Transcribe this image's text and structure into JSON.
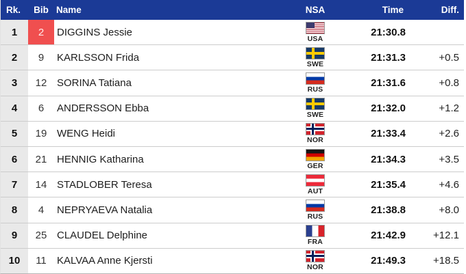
{
  "colors": {
    "header_bg": "#1b3a96",
    "leader_bib_bg": "#f04f4f",
    "rank_col_bg": "#e9e9e9",
    "row_border": "#cccccc"
  },
  "table": {
    "headers": {
      "rank": "Rk.",
      "bib": "Bib",
      "name": "Name",
      "nsa": "NSA",
      "time": "Time",
      "diff": "Diff."
    },
    "rows": [
      {
        "rank": "1",
        "bib": "2",
        "bib_highlight": true,
        "name": "DIGGINS Jessie",
        "nsa": "USA",
        "time": "21:30.8",
        "diff": ""
      },
      {
        "rank": "2",
        "bib": "9",
        "name": "KARLSSON Frida",
        "nsa": "SWE",
        "time": "21:31.3",
        "diff": "+0.5"
      },
      {
        "rank": "3",
        "bib": "12",
        "name": "SORINA Tatiana",
        "nsa": "RUS",
        "time": "21:31.6",
        "diff": "+0.8"
      },
      {
        "rank": "4",
        "bib": "6",
        "name": "ANDERSSON Ebba",
        "nsa": "SWE",
        "time": "21:32.0",
        "diff": "+1.2"
      },
      {
        "rank": "5",
        "bib": "19",
        "name": "WENG Heidi",
        "nsa": "NOR",
        "time": "21:33.4",
        "diff": "+2.6"
      },
      {
        "rank": "6",
        "bib": "21",
        "name": "HENNIG Katharina",
        "nsa": "GER",
        "time": "21:34.3",
        "diff": "+3.5"
      },
      {
        "rank": "7",
        "bib": "14",
        "name": "STADLOBER Teresa",
        "nsa": "AUT",
        "time": "21:35.4",
        "diff": "+4.6"
      },
      {
        "rank": "8",
        "bib": "4",
        "name": "NEPRYAEVA Natalia",
        "nsa": "RUS",
        "time": "21:38.8",
        "diff": "+8.0"
      },
      {
        "rank": "9",
        "bib": "25",
        "name": "CLAUDEL Delphine",
        "nsa": "FRA",
        "time": "21:42.9",
        "diff": "+12.1"
      },
      {
        "rank": "10",
        "bib": "11",
        "name": "KALVAA Anne Kjersti",
        "nsa": "NOR",
        "time": "21:49.3",
        "diff": "+18.5"
      }
    ]
  }
}
